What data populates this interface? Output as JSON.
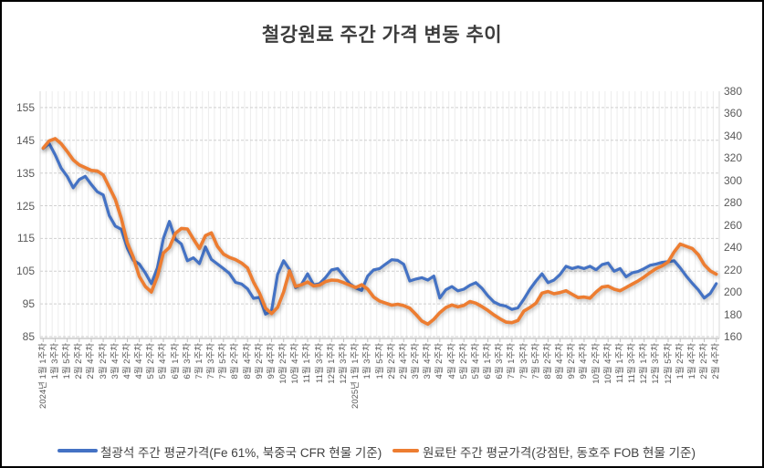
{
  "title": "철강원료 주간 가격 변동 추이",
  "chart_data": {
    "type": "line",
    "title": "철강원료 주간 가격 변동 추이",
    "categories_count": 113,
    "x_axis": {
      "label_interval": 2,
      "tick_labels": [
        "2024년 1월 1주차",
        "1월 3주차",
        "1월 5주차",
        "2월 2주차",
        "2월 4주차",
        "3월 2주차",
        "3월 4주차",
        "4월 2주차",
        "4월 4주차",
        "5월 2주차",
        "5월 4주차",
        "6월 1주차",
        "6월 3주차",
        "7월 1주차",
        "7월 3주차",
        "7월 5주차",
        "8월 2주차",
        "8월 4주차",
        "9월 2주차",
        "9월 4주차",
        "10월 2주차",
        "10월 4주차",
        "11월 1주차",
        "11월 3주차",
        "12월 1주차",
        "12월 3주차",
        "2025년 1월 1주차",
        "1월 3주차",
        "1월 5주차",
        "2월 2주차",
        "2월 4주차",
        "3월 2주차",
        "3월 4주차",
        "4월 2주차",
        "4월 4주차",
        "5월 2주차",
        "5월 4주차",
        "6월 1주차",
        "6월 3주차",
        "7월 1주차",
        "7월 3주차",
        "7월 5주차",
        "8월 2주차",
        "8월 4주차",
        "9월 2주차",
        "9월 4주차",
        "10월 2주차",
        "10월 4주차",
        "11월 1주차",
        "11월 3주차",
        "12월 1주차",
        "12월 3주차",
        "12월 5주차",
        "1월 2주차",
        "1월 4주차",
        "2월 2주차",
        "2월 4주차"
      ]
    },
    "left_axis": {
      "min": 85,
      "max": 160,
      "ticks": [
        155,
        145,
        135,
        125,
        115,
        105,
        95,
        85
      ]
    },
    "right_axis": {
      "min": 160,
      "max": 380,
      "ticks": [
        380,
        360,
        340,
        320,
        300,
        280,
        260,
        240,
        220,
        200,
        180,
        160
      ]
    },
    "grid": {
      "horizontal": "dashed",
      "vertical": "per-category"
    },
    "legend_position": "bottom",
    "series": [
      {
        "name": "철광석 주간 평균가격(Fe 61%, 북중국 CFR 현물 기준)",
        "axis": "left",
        "color": "#4472C4",
        "values": [
          142.5,
          144,
          140.5,
          136.5,
          134,
          130.5,
          133,
          134,
          131.5,
          129.3,
          128.3,
          122,
          118.8,
          117.8,
          112,
          108.3,
          107.2,
          104.5,
          101.2,
          106,
          115,
          120.2,
          114.8,
          113.3,
          108.2,
          109.1,
          107.3,
          112.4,
          108.6,
          107.2,
          105.8,
          104.3,
          101.6,
          101.1,
          99.6,
          96.7,
          97,
          91.9,
          92.9,
          104,
          108.2,
          105.5,
          100,
          101,
          104.2,
          100.8,
          101.2,
          103.1,
          105.4,
          105.8,
          103.5,
          101.2,
          99.9,
          99.1,
          103.5,
          105.4,
          105.8,
          107.2,
          108.5,
          108.3,
          107.1,
          102,
          102.6,
          103,
          102.3,
          103.5,
          96.8,
          99.3,
          100.3,
          99,
          99.5,
          100.7,
          101.5,
          99.8,
          97.5,
          95.6,
          94.7,
          94.3,
          93.3,
          93.8,
          96.5,
          99.5,
          102,
          104.2,
          101.5,
          102.3,
          104,
          106.5,
          105.8,
          106.3,
          105.8,
          106.5,
          105.4,
          107,
          107.5,
          105,
          105.8,
          103.3,
          104.5,
          104.9,
          105.8,
          106.8,
          107.2,
          107.7,
          107.9,
          108.2,
          106,
          103.5,
          101.3,
          99.3,
          96.8,
          98.2,
          101.2
        ]
      },
      {
        "name": "원료탄 주간 평균가격(강점탄, 동호주 FOB 현물 기준)",
        "axis": "right",
        "color": "#ED7D31",
        "values": [
          329,
          335.5,
          337.5,
          333,
          326,
          318.5,
          314,
          311.5,
          309,
          308.5,
          305,
          294,
          283,
          266,
          244,
          231,
          214,
          205,
          200,
          214,
          235,
          240,
          252.5,
          257,
          256.5,
          247.5,
          239,
          250.5,
          253,
          241,
          234,
          231,
          229,
          226,
          221.5,
          209,
          199,
          185.5,
          180.7,
          186.2,
          200,
          219,
          205,
          206.5,
          209,
          205.5,
          206.2,
          209.4,
          210.7,
          210.4,
          208.4,
          206.2,
          204,
          206.5,
          202.5,
          195.5,
          191.8,
          190,
          188.2,
          189,
          187.8,
          185.5,
          180,
          174,
          171.2,
          175.5,
          181.5,
          186,
          188.4,
          186.7,
          188,
          191.5,
          190,
          187,
          183.5,
          179.5,
          176,
          173,
          172.5,
          174.5,
          183,
          186.2,
          190,
          199,
          200.5,
          198.4,
          199.5,
          201.1,
          198,
          195,
          195.5,
          194.5,
          200,
          204.5,
          205.2,
          202.5,
          201.1,
          204,
          207,
          210,
          213.5,
          217.5,
          221,
          223.5,
          227,
          236,
          243,
          241,
          239,
          233.5,
          224.5,
          219,
          216
        ]
      }
    ]
  },
  "legend": {
    "items": [
      {
        "label": "철광석 주간 평균가격(Fe 61%, 북중국 CFR 현물 기준)",
        "color": "#4472C4"
      },
      {
        "label": "원료탄 주간 평균가격(강점탄, 동호주 FOB 현물 기준)",
        "color": "#ED7D31"
      }
    ]
  },
  "colors": {
    "iron_ore_line": "#4472C4",
    "coking_coal_line": "#ED7D31",
    "axis_text": "#595959",
    "gridline": "#cfcfcf",
    "border": "#000000"
  }
}
